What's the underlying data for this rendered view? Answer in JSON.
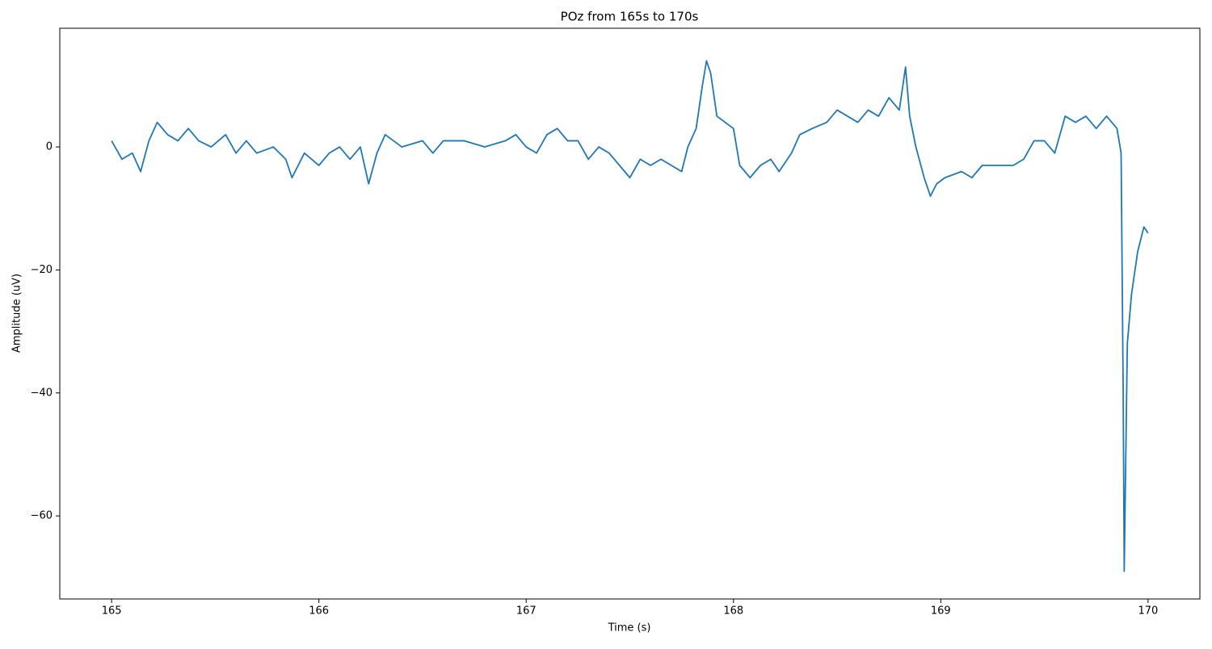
{
  "chart_data": {
    "type": "line",
    "title": "POz from 165s to 170s",
    "xlabel": "Time (s)",
    "ylabel": "Amplitude (uV)",
    "xlim": [
      164.75,
      170.25
    ],
    "ylim": [
      -73.5,
      19.3
    ],
    "xticks": [
      165,
      166,
      167,
      168,
      169,
      170
    ],
    "yticks": [
      {
        "value": -60,
        "label": "−60"
      },
      {
        "value": -40,
        "label": "−40"
      },
      {
        "value": -20,
        "label": "−20"
      },
      0
    ],
    "x": [
      165.0,
      165.05,
      165.1,
      165.14,
      165.18,
      165.22,
      165.27,
      165.32,
      165.37,
      165.42,
      165.48,
      165.55,
      165.6,
      165.65,
      165.7,
      165.78,
      165.84,
      165.87,
      165.93,
      166.0,
      166.05,
      166.1,
      166.15,
      166.2,
      166.24,
      166.28,
      166.32,
      166.4,
      166.5,
      166.55,
      166.6,
      166.7,
      166.8,
      166.9,
      166.95,
      167.0,
      167.05,
      167.1,
      167.15,
      167.2,
      167.25,
      167.3,
      167.35,
      167.4,
      167.45,
      167.5,
      167.55,
      167.6,
      167.65,
      167.7,
      167.75,
      167.78,
      167.82,
      167.85,
      167.87,
      167.89,
      167.92,
      167.96,
      168.0,
      168.03,
      168.08,
      168.13,
      168.18,
      168.22,
      168.28,
      168.32,
      168.38,
      168.45,
      168.5,
      168.55,
      168.6,
      168.65,
      168.7,
      168.75,
      168.8,
      168.83,
      168.85,
      168.88,
      168.92,
      168.95,
      168.98,
      169.02,
      169.1,
      169.15,
      169.2,
      169.3,
      169.35,
      169.4,
      169.45,
      169.5,
      169.55,
      169.6,
      169.65,
      169.7,
      169.75,
      169.8,
      169.85,
      169.87,
      169.88,
      169.885,
      169.9,
      169.92,
      169.95,
      169.98,
      170.0
    ],
    "series": [
      {
        "name": "POz",
        "color": "#1f77b4",
        "values": [
          1,
          -2,
          -1,
          -4,
          1,
          4,
          2,
          1,
          3,
          1,
          0,
          2,
          -1,
          1,
          -1,
          0,
          -2,
          -5,
          -1,
          -3,
          -1,
          0,
          -2,
          0,
          -6,
          -1,
          2,
          0,
          1,
          -1,
          1,
          1,
          0,
          1,
          2,
          0,
          -1,
          2,
          3,
          1,
          1,
          -2,
          0,
          -1,
          -3,
          -5,
          -2,
          -3,
          -2,
          -3,
          -4,
          0,
          3,
          10,
          14,
          12,
          5,
          4,
          3,
          -3,
          -5,
          -3,
          -2,
          -4,
          -1,
          2,
          3,
          4,
          6,
          5,
          4,
          6,
          5,
          8,
          6,
          13,
          5,
          0,
          -5,
          -8,
          -6,
          -5,
          -4,
          -5,
          -3,
          -3,
          -3,
          -2,
          1,
          1,
          -1,
          5,
          4,
          5,
          3,
          5,
          3,
          -1,
          -40,
          -69,
          -32,
          -24,
          -17,
          -13,
          -14
        ]
      }
    ]
  }
}
